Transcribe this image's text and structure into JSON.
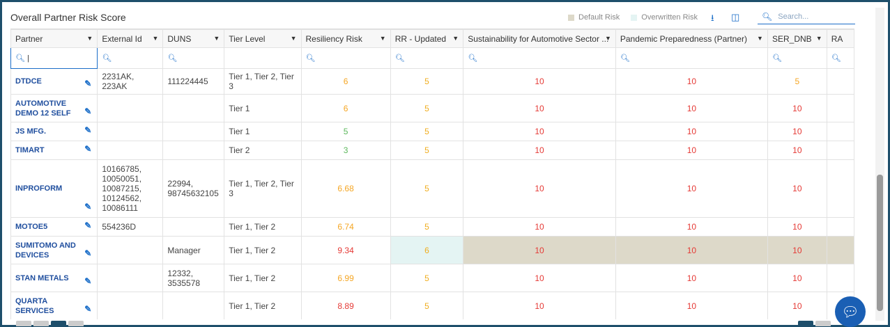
{
  "header": {
    "title": "Overall Partner Risk Score",
    "legend": [
      {
        "label": "Default Risk",
        "color": "#ddd9c9"
      },
      {
        "label": "Overwritten Risk",
        "color": "#e4f4f3"
      }
    ],
    "search_placeholder": "Search..."
  },
  "columns": [
    {
      "label": "Partner"
    },
    {
      "label": "External Id"
    },
    {
      "label": "DUNS"
    },
    {
      "label": "Tier Level"
    },
    {
      "label": "Resiliency Risk"
    },
    {
      "label": "RR - Updated"
    },
    {
      "label": "Sustainability for Automotive Sector ..."
    },
    {
      "label": "Pandemic Preparedness (Partner)"
    },
    {
      "label": "SER_DNB"
    },
    {
      "label": "RA"
    }
  ],
  "rows": [
    {
      "partner": "DTDCE",
      "external_id": "2231AK, 223AK",
      "duns": "111224445",
      "tier": "Tier 1, Tier 2, Tier 3",
      "resiliency": "6",
      "rr_updated": "5",
      "sustainability": "10",
      "pandemic": "10",
      "ser_dnb": "5"
    },
    {
      "partner": "AUTOMOTIVE DEMO 12 SELF",
      "external_id": "",
      "duns": "",
      "tier": "Tier 1",
      "resiliency": "6",
      "rr_updated": "5",
      "sustainability": "10",
      "pandemic": "10",
      "ser_dnb": "10"
    },
    {
      "partner": "JS MFG.",
      "external_id": "",
      "duns": "",
      "tier": "Tier 1",
      "resiliency": "5",
      "rr_updated": "5",
      "sustainability": "10",
      "pandemic": "10",
      "ser_dnb": "10"
    },
    {
      "partner": "TIMART",
      "external_id": "",
      "duns": "",
      "tier": "Tier 2",
      "resiliency": "3",
      "rr_updated": "5",
      "sustainability": "10",
      "pandemic": "10",
      "ser_dnb": "10"
    },
    {
      "partner": "INPROFORM",
      "external_id": "10166785, 10050051, 10087215, 10124562, 10086111",
      "duns": "22994, 98745632105",
      "tier": "Tier 1, Tier 2, Tier 3",
      "resiliency": "6.68",
      "rr_updated": "5",
      "sustainability": "10",
      "pandemic": "10",
      "ser_dnb": "10"
    },
    {
      "partner": "MOTOE5",
      "external_id": "554236D",
      "duns": "",
      "tier": "Tier 1, Tier 2",
      "resiliency": "6.74",
      "rr_updated": "5",
      "sustainability": "10",
      "pandemic": "10",
      "ser_dnb": "10"
    },
    {
      "partner": "SUMITOMO AND DEVICES",
      "external_id": "",
      "duns": "Manager",
      "tier": "Tier 1, Tier 2",
      "resiliency": "9.34",
      "rr_updated": "6",
      "sustainability": "10",
      "pandemic": "10",
      "ser_dnb": "10"
    },
    {
      "partner": "STAN METALS",
      "external_id": "",
      "duns": "12332, 3535578",
      "tier": "Tier 1, Tier 2",
      "resiliency": "6.99",
      "rr_updated": "5",
      "sustainability": "10",
      "pandemic": "10",
      "ser_dnb": "10"
    },
    {
      "partner": "QUARTA SERVICES",
      "external_id": "",
      "duns": "",
      "tier": "Tier 1, Tier 2",
      "resiliency": "8.89",
      "rr_updated": "5",
      "sustainability": "10",
      "pandemic": "10",
      "ser_dnb": "10"
    }
  ],
  "colors": {
    "accent": "#1a6dc8",
    "red": "#e53935",
    "orange": "#f5a623",
    "green": "#5cb85c",
    "frame": "#1e4f6b"
  },
  "icons": [
    "search-icon",
    "download-icon",
    "columns-icon",
    "filter-icon",
    "edit-icon",
    "chat-icon"
  ]
}
